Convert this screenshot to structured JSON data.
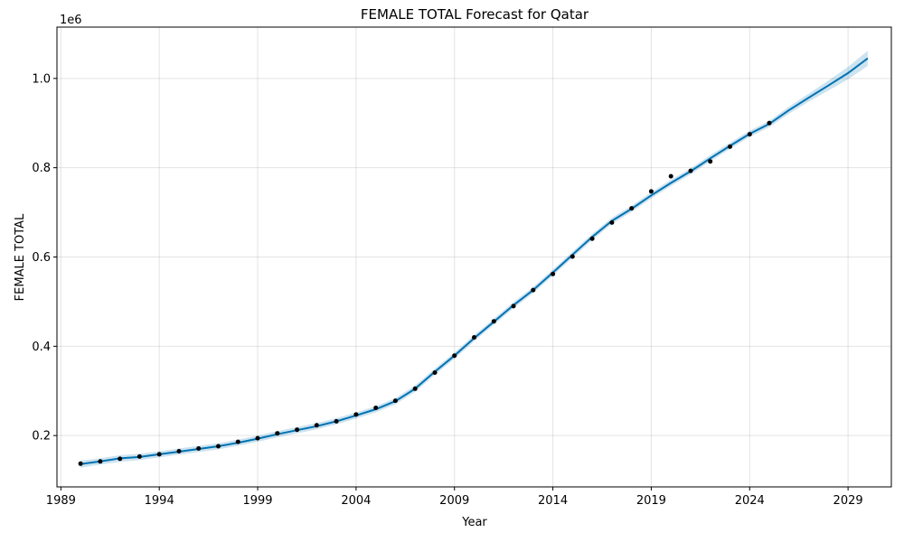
{
  "chart_data": {
    "type": "line",
    "title": "FEMALE TOTAL Forecast for Qatar",
    "xlabel": "Year",
    "ylabel": "FEMALE TOTAL",
    "y_offset_label": "1e6",
    "xlim": [
      1988.8,
      2031.2
    ],
    "ylim": [
      0.085,
      1.115
    ],
    "x_ticks": [
      1989,
      1994,
      1999,
      2004,
      2009,
      2014,
      2019,
      2024,
      2029
    ],
    "x_tick_labels": [
      "1989",
      "1994",
      "1999",
      "2004",
      "2009",
      "2014",
      "2019",
      "2024",
      "2029"
    ],
    "y_ticks": [
      0.2,
      0.4,
      0.6,
      0.8,
      1.0
    ],
    "y_tick_labels": [
      "0.2",
      "0.4",
      "0.6",
      "0.8",
      "1.0"
    ],
    "grid": true,
    "colors": {
      "observed": "#000000",
      "forecast_line": "#0072B2",
      "uncertainty_band": "#0072B2"
    },
    "series": [
      {
        "kind": "observed",
        "x": [
          1990,
          1991,
          1992,
          1993,
          1994,
          1995,
          1996,
          1997,
          1998,
          1999,
          2000,
          2001,
          2002,
          2003,
          2004,
          2005,
          2006,
          2007,
          2008,
          2009,
          2010,
          2011,
          2012,
          2013,
          2014,
          2015,
          2016,
          2017,
          2018,
          2019,
          2020,
          2021,
          2022,
          2023,
          2024,
          2025
        ],
        "y": [
          0.137,
          0.142,
          0.148,
          0.153,
          0.158,
          0.165,
          0.171,
          0.176,
          0.186,
          0.194,
          0.205,
          0.213,
          0.223,
          0.232,
          0.247,
          0.262,
          0.278,
          0.305,
          0.341,
          0.379,
          0.42,
          0.456,
          0.49,
          0.526,
          0.562,
          0.601,
          0.641,
          0.677,
          0.709,
          0.747,
          0.781,
          0.793,
          0.814,
          0.847,
          0.875,
          0.9
        ]
      },
      {
        "kind": "forecast",
        "x": [
          1990,
          1991,
          1992,
          1993,
          1994,
          1995,
          1996,
          1997,
          1998,
          1999,
          2000,
          2001,
          2002,
          2003,
          2004,
          2005,
          2006,
          2007,
          2008,
          2009,
          2010,
          2011,
          2012,
          2013,
          2014,
          2015,
          2016,
          2017,
          2018,
          2019,
          2020,
          2021,
          2022,
          2023,
          2024,
          2025,
          2026,
          2027,
          2028,
          2029,
          2030
        ],
        "y": [
          0.136,
          0.142,
          0.149,
          0.152,
          0.158,
          0.164,
          0.17,
          0.176,
          0.184,
          0.193,
          0.203,
          0.212,
          0.221,
          0.232,
          0.245,
          0.259,
          0.277,
          0.305,
          0.343,
          0.379,
          0.418,
          0.455,
          0.492,
          0.526,
          0.565,
          0.605,
          0.645,
          0.681,
          0.708,
          0.738,
          0.766,
          0.792,
          0.821,
          0.849,
          0.876,
          0.898,
          0.929,
          0.957,
          0.984,
          1.012,
          1.045
        ],
        "lower": [
          0.128,
          0.135,
          0.141,
          0.145,
          0.151,
          0.157,
          0.163,
          0.169,
          0.177,
          0.186,
          0.196,
          0.205,
          0.214,
          0.225,
          0.238,
          0.252,
          0.27,
          0.298,
          0.336,
          0.372,
          0.411,
          0.448,
          0.485,
          0.519,
          0.558,
          0.598,
          0.638,
          0.674,
          0.701,
          0.731,
          0.759,
          0.785,
          0.814,
          0.842,
          0.869,
          0.891,
          0.921,
          0.948,
          0.973,
          0.998,
          1.028
        ],
        "upper": [
          0.144,
          0.149,
          0.156,
          0.159,
          0.165,
          0.171,
          0.177,
          0.183,
          0.191,
          0.2,
          0.21,
          0.219,
          0.228,
          0.239,
          0.252,
          0.266,
          0.284,
          0.312,
          0.35,
          0.386,
          0.425,
          0.462,
          0.499,
          0.533,
          0.572,
          0.612,
          0.652,
          0.688,
          0.715,
          0.745,
          0.773,
          0.799,
          0.828,
          0.856,
          0.883,
          0.905,
          0.937,
          0.966,
          0.995,
          1.026,
          1.062
        ]
      }
    ]
  }
}
